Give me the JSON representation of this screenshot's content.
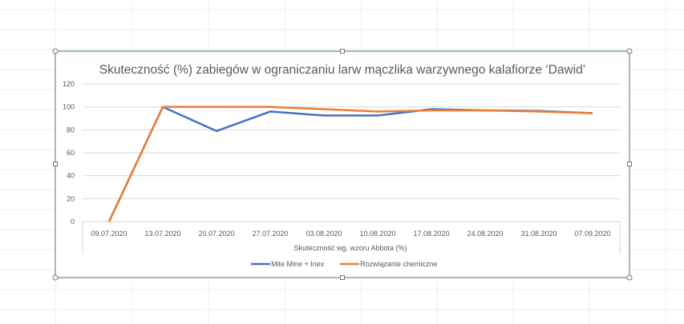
{
  "chart_data": {
    "type": "line",
    "title": "Skuteczność (%) zabiegów w ograniczaniu larw mączlika warzywnego kalafiorze ‘Dawid’",
    "xlabel": "Skuteczność wg. wzoru Abbota (%)",
    "ylabel": "",
    "ylim": [
      0,
      120
    ],
    "yticks": [
      0,
      20,
      40,
      60,
      80,
      100,
      120
    ],
    "grid": true,
    "legend": "bottom",
    "categories": [
      "09.07.2020",
      "13.07.2020",
      "20.07.2020",
      "27.07.2020",
      "03.08.2020",
      "10.08.2020",
      "17.08.2020",
      "24.08.2020",
      "31.08.2020",
      "07.09.2020"
    ],
    "series": [
      {
        "name": "Mite Mine + Inex",
        "color": "#4472C4",
        "values": [
          0,
          100,
          79,
          96,
          92.5,
          92.5,
          98,
          97,
          96.5,
          94.5
        ]
      },
      {
        "name": "Rozwiązanie chemiczne",
        "color": "#ED7D31",
        "values": [
          0,
          100,
          100,
          100,
          98,
          96,
          97,
          97,
          96,
          94.5
        ]
      }
    ]
  }
}
